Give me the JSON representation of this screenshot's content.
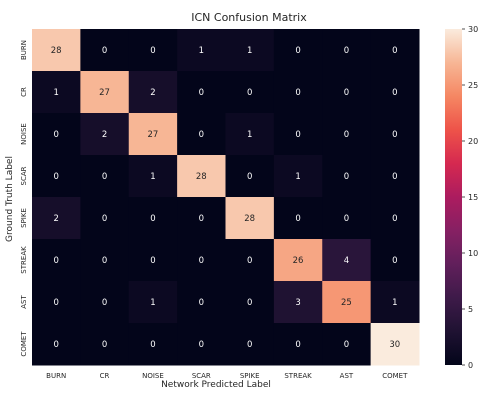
{
  "chart_data": {
    "type": "heatmap",
    "title": "ICN Confusion Matrix",
    "xlabel": "Network Predicted Label",
    "ylabel": "Ground Truth Label",
    "x_categories": [
      "BURN",
      "CR",
      "NOISE",
      "SCAR",
      "SPIKE",
      "STREAK",
      "AST",
      "COMET"
    ],
    "y_categories": [
      "BURN",
      "CR",
      "NOISE",
      "SCAR",
      "SPIKE",
      "STREAK",
      "AST",
      "COMET"
    ],
    "values": [
      [
        28,
        0,
        0,
        1,
        1,
        0,
        0,
        0
      ],
      [
        1,
        27,
        2,
        0,
        0,
        0,
        0,
        0
      ],
      [
        0,
        2,
        27,
        0,
        1,
        0,
        0,
        0
      ],
      [
        0,
        0,
        1,
        28,
        0,
        1,
        0,
        0
      ],
      [
        2,
        0,
        0,
        0,
        28,
        0,
        0,
        0
      ],
      [
        0,
        0,
        0,
        0,
        0,
        26,
        4,
        0
      ],
      [
        0,
        0,
        1,
        0,
        0,
        3,
        25,
        1
      ],
      [
        0,
        0,
        0,
        0,
        0,
        0,
        0,
        30
      ]
    ],
    "colorbar": {
      "range": [
        0,
        30
      ],
      "ticks": [
        0,
        5,
        10,
        15,
        20,
        25,
        30
      ]
    },
    "colormap": "rocket"
  }
}
